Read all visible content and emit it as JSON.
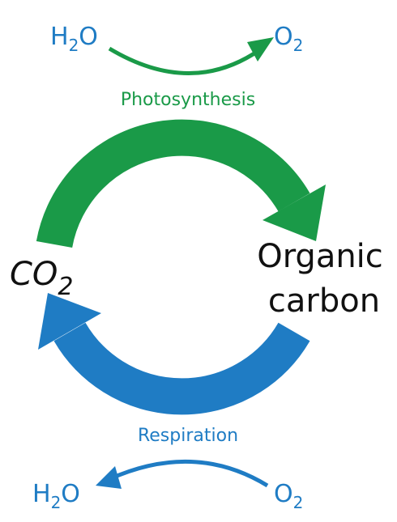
{
  "diagram": {
    "photosynthesis": {
      "label": "Photosynthesis",
      "input": [
        "H",
        "2",
        "O"
      ],
      "output": [
        "O",
        "2"
      ]
    },
    "respiration": {
      "label": "Respiration",
      "input": [
        "O",
        "2"
      ],
      "output": [
        "H",
        "2",
        "O"
      ]
    },
    "left_node": [
      "CO",
      "2"
    ],
    "right_node": [
      "Organic",
      "carbon"
    ]
  }
}
